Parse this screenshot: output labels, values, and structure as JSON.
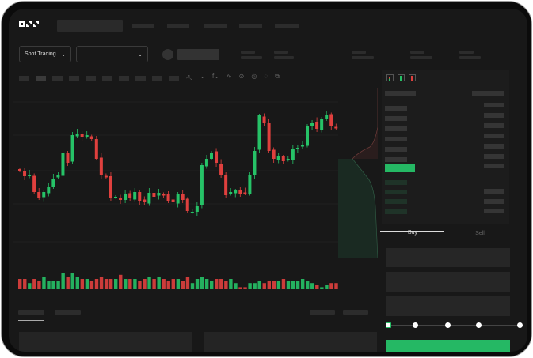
{
  "header": {
    "logo": "OKX"
  },
  "controls": {
    "mode_label": "Spot Trading",
    "pair_label": ""
  },
  "trade": {
    "buy_tab": "Buy",
    "sell_tab": "Sell",
    "buy_button": ""
  },
  "colors": {
    "up": "#26c267",
    "down": "#e0403e",
    "background": "#181818",
    "accent": "#25b864"
  },
  "icons": [
    "logo",
    "chevron-down-icon",
    "line-tool-icon",
    "brush-icon",
    "settings-icon",
    "fullscreen-icon",
    "orderbook-both-icon",
    "orderbook-bids-icon",
    "orderbook-asks-icon"
  ],
  "candles_close": [
    95,
    88,
    90,
    68,
    60,
    68,
    75,
    85,
    90,
    118,
    105,
    140,
    142,
    138,
    140,
    135,
    110,
    90,
    88,
    60,
    62,
    58,
    65,
    60,
    68,
    57,
    55,
    67,
    62,
    67,
    65,
    57,
    55,
    65,
    58,
    44,
    43,
    50,
    102,
    110,
    118,
    105,
    90,
    64,
    68,
    70,
    66,
    67,
    90,
    120,
    165,
    155,
    120,
    110,
    113,
    107,
    110,
    122,
    124,
    128,
    152,
    155,
    148,
    160,
    165,
    152,
    150,
    155
  ],
  "volumes": [
    5,
    5,
    3,
    5,
    4,
    6,
    4,
    4,
    4,
    8,
    6,
    8,
    6,
    5,
    5,
    4,
    5,
    6,
    5,
    5,
    5,
    7,
    5,
    5,
    5,
    4,
    5,
    6,
    5,
    6,
    5,
    4,
    5,
    5,
    4,
    6,
    3,
    5,
    6,
    5,
    4,
    5,
    5,
    4,
    5,
    3,
    1,
    1,
    3,
    3,
    4,
    3,
    4,
    4,
    4,
    5,
    4,
    4,
    4,
    5,
    4,
    3,
    2,
    1,
    2,
    3,
    3,
    2
  ]
}
